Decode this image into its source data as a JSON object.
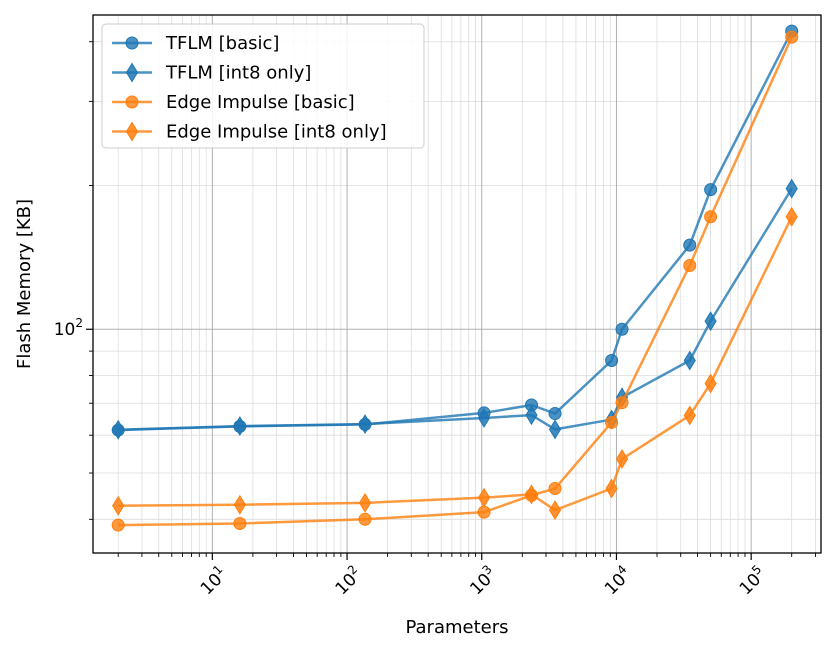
{
  "chart_data": {
    "type": "line",
    "title": "",
    "xlabel": "Parameters",
    "ylabel": "Flash Memory [KB]",
    "xscale": "log",
    "yscale": "log",
    "xlim": [
      1.3,
      330000
    ],
    "ylim": [
      34,
      455
    ],
    "x_ticks": [
      {
        "value": 10,
        "base": "10",
        "exp": "1"
      },
      {
        "value": 100,
        "base": "10",
        "exp": "2"
      },
      {
        "value": 1000,
        "base": "10",
        "exp": "3"
      },
      {
        "value": 10000,
        "base": "10",
        "exp": "4"
      },
      {
        "value": 100000,
        "base": "10",
        "exp": "5"
      }
    ],
    "y_ticks": [
      {
        "value": 100,
        "base": "10",
        "exp": "2"
      }
    ],
    "grid": true,
    "legend_position": "top-left",
    "colors": {
      "blue": "#1f77b4",
      "orange": "#ff7f0e"
    },
    "series": [
      {
        "name": "TFLM [basic]",
        "color": "#1f77b4",
        "marker": "circle",
        "x": [
          2,
          16,
          136,
          1040,
          2340,
          3500,
          9200,
          11000,
          35000,
          50000,
          200000
        ],
        "y": [
          61.5,
          62.6,
          63.2,
          66.8,
          69.4,
          66.6,
          86,
          100,
          150,
          196,
          421
        ]
      },
      {
        "name": "TFLM [int8 only]",
        "color": "#1f77b4",
        "marker": "diamond",
        "x": [
          2,
          16,
          136,
          1040,
          2340,
          3500,
          9200,
          11000,
          35000,
          50000,
          200000
        ],
        "y": [
          61.6,
          62.7,
          63.3,
          65.2,
          66.1,
          61.7,
          64.7,
          72,
          86,
          104,
          197
        ]
      },
      {
        "name": "Edge Impulse [basic]",
        "color": "#ff7f0e",
        "marker": "circle",
        "x": [
          2,
          16,
          136,
          1040,
          2340,
          3500,
          9200,
          11000,
          35000,
          50000,
          200000
        ],
        "y": [
          38.9,
          39.2,
          40,
          41.4,
          44.9,
          46.4,
          63.8,
          70.2,
          136,
          172,
          409
        ]
      },
      {
        "name": "Edge Impulse [int8 only]",
        "color": "#ff7f0e",
        "marker": "diamond",
        "x": [
          2,
          16,
          136,
          1040,
          2340,
          3500,
          9200,
          11000,
          35000,
          50000,
          200000
        ],
        "y": [
          42.7,
          42.9,
          43.3,
          44.4,
          45.1,
          41.8,
          46.4,
          53.5,
          66,
          77,
          172
        ]
      }
    ]
  }
}
